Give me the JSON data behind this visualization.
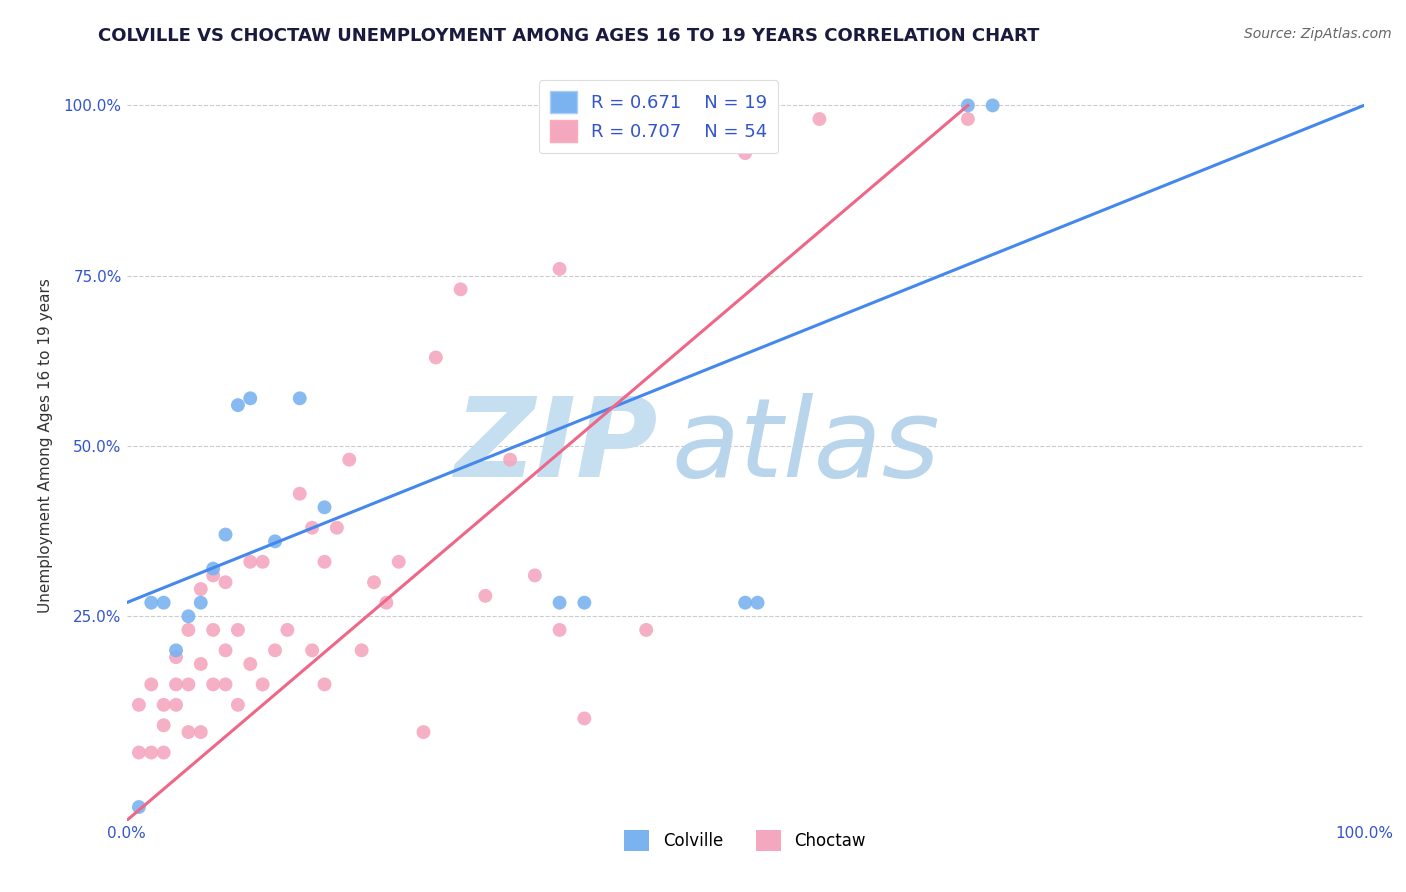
{
  "title": "COLVILLE VS CHOCTAW UNEMPLOYMENT AMONG AGES 16 TO 19 YEARS CORRELATION CHART",
  "source_text": "Source: ZipAtlas.com",
  "ylabel": "Unemployment Among Ages 16 to 19 years",
  "xlim": [
    0.0,
    1.0
  ],
  "ylim": [
    -0.05,
    1.05
  ],
  "colville_R": "0.671",
  "colville_N": "19",
  "choctaw_R": "0.707",
  "choctaw_N": "54",
  "colville_color": "#7ab3f0",
  "choctaw_color": "#f4a8c0",
  "colville_line_color": "#4488ee",
  "choctaw_line_color": "#ee6688",
  "watermark_zip_color": "#c5dff0",
  "watermark_atlas_color": "#b8d5ec",
  "legend_color": "#3355cc",
  "grid_color": "#cccccc",
  "colville_scatter_x": [
    0.02,
    0.03,
    0.04,
    0.05,
    0.06,
    0.07,
    0.08,
    0.09,
    0.1,
    0.12,
    0.14,
    0.16,
    0.35,
    0.37,
    0.5,
    0.51,
    0.68,
    0.7,
    0.01
  ],
  "colville_scatter_y": [
    0.27,
    0.27,
    0.2,
    0.25,
    0.27,
    0.32,
    0.37,
    0.56,
    0.57,
    0.36,
    0.57,
    0.41,
    0.27,
    0.27,
    0.27,
    0.27,
    1.0,
    1.0,
    -0.03
  ],
  "choctaw_scatter_x": [
    0.01,
    0.01,
    0.02,
    0.02,
    0.03,
    0.03,
    0.03,
    0.04,
    0.04,
    0.04,
    0.05,
    0.05,
    0.05,
    0.06,
    0.06,
    0.06,
    0.07,
    0.07,
    0.07,
    0.08,
    0.08,
    0.08,
    0.09,
    0.09,
    0.1,
    0.1,
    0.11,
    0.11,
    0.12,
    0.13,
    0.14,
    0.15,
    0.15,
    0.16,
    0.16,
    0.17,
    0.18,
    0.19,
    0.2,
    0.21,
    0.22,
    0.24,
    0.25,
    0.27,
    0.29,
    0.31,
    0.33,
    0.35,
    0.35,
    0.37,
    0.42,
    0.5,
    0.56,
    0.68
  ],
  "choctaw_scatter_y": [
    0.05,
    0.12,
    0.05,
    0.15,
    0.05,
    0.09,
    0.12,
    0.12,
    0.15,
    0.19,
    0.08,
    0.15,
    0.23,
    0.08,
    0.18,
    0.29,
    0.15,
    0.23,
    0.31,
    0.15,
    0.2,
    0.3,
    0.12,
    0.23,
    0.18,
    0.33,
    0.15,
    0.33,
    0.2,
    0.23,
    0.43,
    0.2,
    0.38,
    0.15,
    0.33,
    0.38,
    0.48,
    0.2,
    0.3,
    0.27,
    0.33,
    0.08,
    0.63,
    0.73,
    0.28,
    0.48,
    0.31,
    0.76,
    0.23,
    0.1,
    0.23,
    0.93,
    0.98,
    0.98
  ],
  "colville_line_x": [
    0.0,
    1.0
  ],
  "colville_line_y": [
    0.27,
    1.0
  ],
  "choctaw_line_x": [
    0.0,
    0.68
  ],
  "choctaw_line_y": [
    -0.05,
    1.0
  ],
  "ytick_positions": [
    0.25,
    0.5,
    0.75,
    1.0
  ],
  "ytick_labels": [
    "25.0%",
    "50.0%",
    "75.0%",
    "100.0%"
  ]
}
